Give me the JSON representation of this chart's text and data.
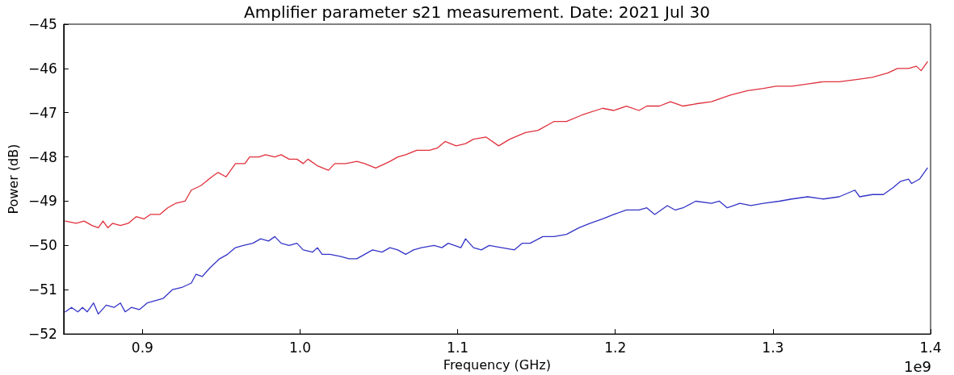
{
  "chart_data": {
    "type": "line",
    "title": "Amplifier parameter s21 measurement. Date: 2021 Jul 30",
    "xlabel": "Frequency (GHz)",
    "ylabel": "Power (dB)",
    "annotations": [
      "1e9"
    ],
    "xlim": [
      0.85,
      1.4
    ],
    "xticks": [
      0.9,
      {
        "value": 1,
        "label": "1.0"
      },
      1.1,
      1.2,
      1.3,
      1.4
    ],
    "ylim": [
      -52,
      -45
    ],
    "yticks": [
      -52,
      -51,
      -50,
      -49,
      -48,
      -47,
      -46,
      -45
    ],
    "grid": false,
    "marker": "none",
    "line_style": "solid",
    "series": [
      {
        "color": "#e0303c",
        "x": [
          0.851,
          0.858,
          0.863,
          0.868,
          0.872,
          0.875,
          0.878,
          0.881,
          0.886,
          0.891,
          0.896,
          0.901,
          0.905,
          0.911,
          0.916,
          0.921,
          0.927,
          0.931,
          0.937,
          0.944,
          0.948,
          0.953,
          0.959,
          0.965,
          0.968,
          0.974,
          0.978,
          0.984,
          0.988,
          0.993,
          0.998,
          1.002,
          1.005,
          1.011,
          1.018,
          1.022,
          1.029,
          1.036,
          1.041,
          1.048,
          1.057,
          1.062,
          1.067,
          1.074,
          1.082,
          1.087,
          1.092,
          1.099,
          1.105,
          1.11,
          1.118,
          1.126,
          1.133,
          1.143,
          1.151,
          1.161,
          1.169,
          1.179,
          1.192,
          1.199,
          1.207,
          1.215,
          1.22,
          1.228,
          1.235,
          1.243,
          1.251,
          1.261,
          1.273,
          1.284,
          1.294,
          1.302,
          1.312,
          1.322,
          1.332,
          1.342,
          1.353,
          1.363,
          1.373,
          1.379,
          1.386,
          1.391,
          1.394,
          1.398
        ],
        "values": [
          -49.45,
          -49.5,
          -49.45,
          -49.55,
          -49.6,
          -49.45,
          -49.6,
          -49.5,
          -49.55,
          -49.5,
          -49.35,
          -49.4,
          -49.3,
          -49.3,
          -49.15,
          -49.05,
          -49.0,
          -48.75,
          -48.65,
          -48.45,
          -48.35,
          -48.45,
          -48.15,
          -48.15,
          -48.0,
          -48.0,
          -47.95,
          -48.0,
          -47.95,
          -48.05,
          -48.05,
          -48.15,
          -48.05,
          -48.2,
          -48.3,
          -48.15,
          -48.15,
          -48.1,
          -48.15,
          -48.25,
          -48.1,
          -48.0,
          -47.95,
          -47.85,
          -47.85,
          -47.8,
          -47.65,
          -47.75,
          -47.7,
          -47.6,
          -47.55,
          -47.75,
          -47.6,
          -47.45,
          -47.4,
          -47.2,
          -47.2,
          -47.05,
          -46.9,
          -46.95,
          -46.85,
          -46.95,
          -46.85,
          -46.85,
          -46.75,
          -46.85,
          -46.8,
          -46.75,
          -46.6,
          -46.5,
          -46.45,
          -46.4,
          -46.4,
          -46.35,
          -46.3,
          -46.3,
          -46.25,
          -46.2,
          -46.1,
          -46.0,
          -46.0,
          -45.95,
          -46.05,
          -45.85
        ]
      },
      {
        "color": "#3434c8",
        "x": [
          0.851,
          0.855,
          0.859,
          0.862,
          0.865,
          0.869,
          0.872,
          0.877,
          0.882,
          0.886,
          0.889,
          0.893,
          0.898,
          0.903,
          0.908,
          0.913,
          0.919,
          0.925,
          0.931,
          0.934,
          0.938,
          0.943,
          0.949,
          0.954,
          0.959,
          0.964,
          0.97,
          0.975,
          0.98,
          0.984,
          0.988,
          0.993,
          0.998,
          1.002,
          1.008,
          1.011,
          1.014,
          1.019,
          1.026,
          1.031,
          1.036,
          1.041,
          1.046,
          1.052,
          1.057,
          1.062,
          1.067,
          1.072,
          1.077,
          1.085,
          1.09,
          1.094,
          1.102,
          1.105,
          1.11,
          1.115,
          1.12,
          1.128,
          1.136,
          1.141,
          1.146,
          1.154,
          1.161,
          1.169,
          1.177,
          1.184,
          1.192,
          1.199,
          1.207,
          1.215,
          1.22,
          1.225,
          1.233,
          1.238,
          1.243,
          1.251,
          1.261,
          1.266,
          1.271,
          1.279,
          1.286,
          1.294,
          1.304,
          1.312,
          1.322,
          1.332,
          1.342,
          1.352,
          1.355,
          1.363,
          1.37,
          1.376,
          1.381,
          1.386,
          1.388,
          1.393,
          1.398
        ],
        "values": [
          -51.5,
          -51.4,
          -51.5,
          -51.4,
          -51.5,
          -51.3,
          -51.55,
          -51.35,
          -51.4,
          -51.3,
          -51.5,
          -51.4,
          -51.45,
          -51.3,
          -51.25,
          -51.2,
          -51.0,
          -50.95,
          -50.85,
          -50.65,
          -50.7,
          -50.5,
          -50.3,
          -50.2,
          -50.05,
          -50.0,
          -49.95,
          -49.85,
          -49.9,
          -49.8,
          -49.95,
          -50.0,
          -49.95,
          -50.1,
          -50.15,
          -50.05,
          -50.2,
          -50.2,
          -50.25,
          -50.3,
          -50.3,
          -50.2,
          -50.1,
          -50.15,
          -50.05,
          -50.1,
          -50.2,
          -50.1,
          -50.05,
          -50.0,
          -50.05,
          -49.95,
          -50.05,
          -49.85,
          -50.05,
          -50.1,
          -50.0,
          -50.05,
          -50.1,
          -49.95,
          -49.95,
          -49.8,
          -49.8,
          -49.75,
          -49.6,
          -49.5,
          -49.4,
          -49.3,
          -49.2,
          -49.2,
          -49.15,
          -49.3,
          -49.1,
          -49.2,
          -49.15,
          -49.0,
          -49.05,
          -49.0,
          -49.15,
          -49.05,
          -49.1,
          -49.05,
          -49.0,
          -48.95,
          -48.9,
          -48.95,
          -48.9,
          -48.75,
          -48.9,
          -48.85,
          -48.85,
          -48.7,
          -48.55,
          -48.5,
          -48.6,
          -48.5,
          -48.25
        ]
      }
    ]
  }
}
